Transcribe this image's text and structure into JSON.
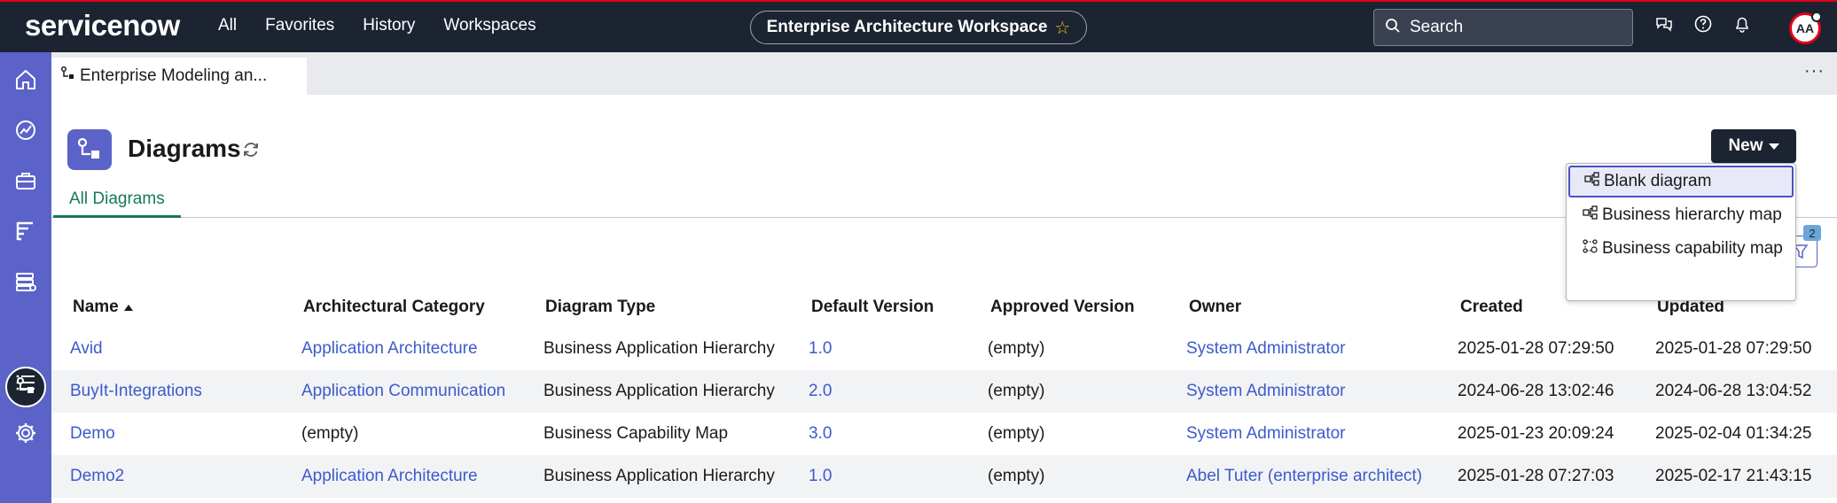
{
  "topbar": {
    "logo": "servicenow",
    "nav": [
      "All",
      "Favorites",
      "History",
      "Workspaces"
    ],
    "workspace_title": "Enterprise Architecture Workspace",
    "search_placeholder": "Search",
    "avatar_initials": "AA"
  },
  "colors": {
    "topbar_bg": "#1c2331",
    "sidebar_bg": "#5b63c8",
    "accent_green": "#157a54",
    "link_blue": "#3c5bcc",
    "alert_red": "#e3001b"
  },
  "sidebar": {
    "icons": [
      "home-icon",
      "dashboard-icon",
      "briefcase-icon",
      "bar-chart-icon",
      "database-icon",
      "diagram-icon",
      "list-icon",
      "gear-icon"
    ],
    "active_icon": "diagram-icon"
  },
  "tab": {
    "label": "Enterprise Modeling an..."
  },
  "page": {
    "title": "Diagrams",
    "new_button": "New",
    "subtab": "All Diagrams",
    "filter_count": "2"
  },
  "dropdown": {
    "items": [
      "Blank diagram",
      "Business hierarchy map",
      "Business capability map"
    ],
    "selected_index": 0
  },
  "table": {
    "columns": [
      "Name",
      "Architectural Category",
      "Diagram Type",
      "Default Version",
      "Approved Version",
      "Owner",
      "Created",
      "Updated"
    ],
    "sort_column": "Name",
    "sort_direction": "ascending",
    "rows": [
      [
        "Avid",
        "Application Architecture",
        "Business Application Hierarchy",
        "1.0",
        "(empty)",
        "System Administrator",
        "2025-01-28 07:29:50",
        "2025-01-28 07:29:50"
      ],
      [
        "BuyIt-Integrations",
        "Application Communication",
        "Business Application Hierarchy",
        "2.0",
        "(empty)",
        "System Administrator",
        "2024-06-28 13:02:46",
        "2024-06-28 13:04:52"
      ],
      [
        "Demo",
        "(empty)",
        "Business Capability Map",
        "3.0",
        "(empty)",
        "System Administrator",
        "2025-01-23 20:09:24",
        "2025-02-04 01:34:25"
      ],
      [
        "Demo2",
        "Application Architecture",
        "Business Application Hierarchy",
        "1.0",
        "(empty)",
        "Abel Tuter (enterprise architect)",
        "2025-01-28 07:27:03",
        "2025-02-17 21:43:15"
      ]
    ]
  }
}
